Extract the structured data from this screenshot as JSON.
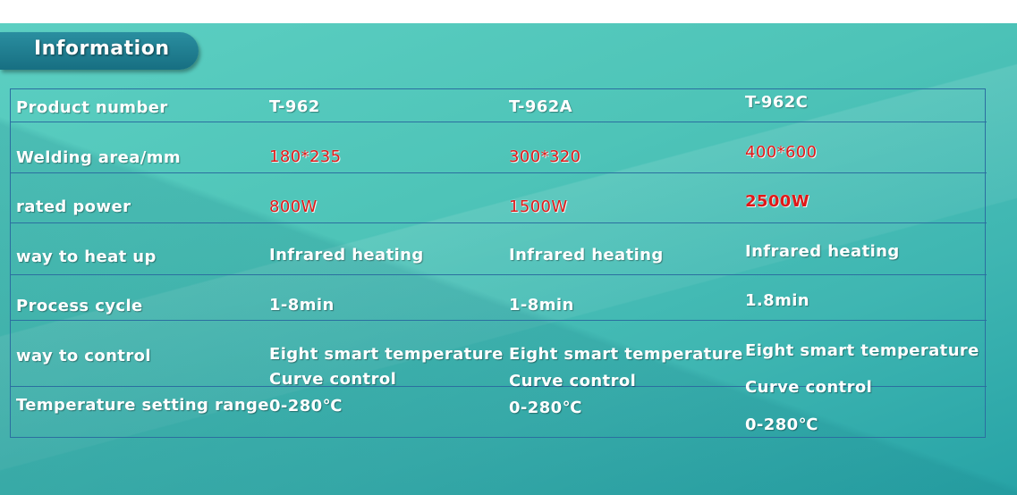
{
  "header": {
    "title": "Information"
  },
  "table": {
    "rows": [
      {
        "label": "Product number",
        "values": [
          "T-962",
          "T-962A",
          "T-962C"
        ]
      },
      {
        "label": "Welding area/mm",
        "values": [
          "180*235",
          "300*320",
          "400*600"
        ]
      },
      {
        "label": "rated power",
        "values": [
          "800W",
          "1500W",
          "2500W"
        ]
      },
      {
        "label": "way to heat up",
        "values": [
          "Infrared heating",
          "Infrared heating",
          "Infrared heating"
        ]
      },
      {
        "label": "Process cycle",
        "values": [
          "1-8min",
          "1-8min",
          "1.8min"
        ]
      },
      {
        "label": "way to control",
        "values": [
          "Eight smart temperature",
          "Eight smart temperature",
          "Eight smart temperature"
        ]
      },
      {
        "label": "",
        "values": [
          "Curve control",
          "Curve control",
          "Curve control"
        ]
      },
      {
        "label": "Temperature setting range",
        "values": [
          "0-280℃",
          "0-280℃",
          "0-280℃"
        ]
      }
    ]
  },
  "colors": {
    "accent_red": "#e01818",
    "tab": "#176f82",
    "grid_line": "#2b6fa0"
  }
}
